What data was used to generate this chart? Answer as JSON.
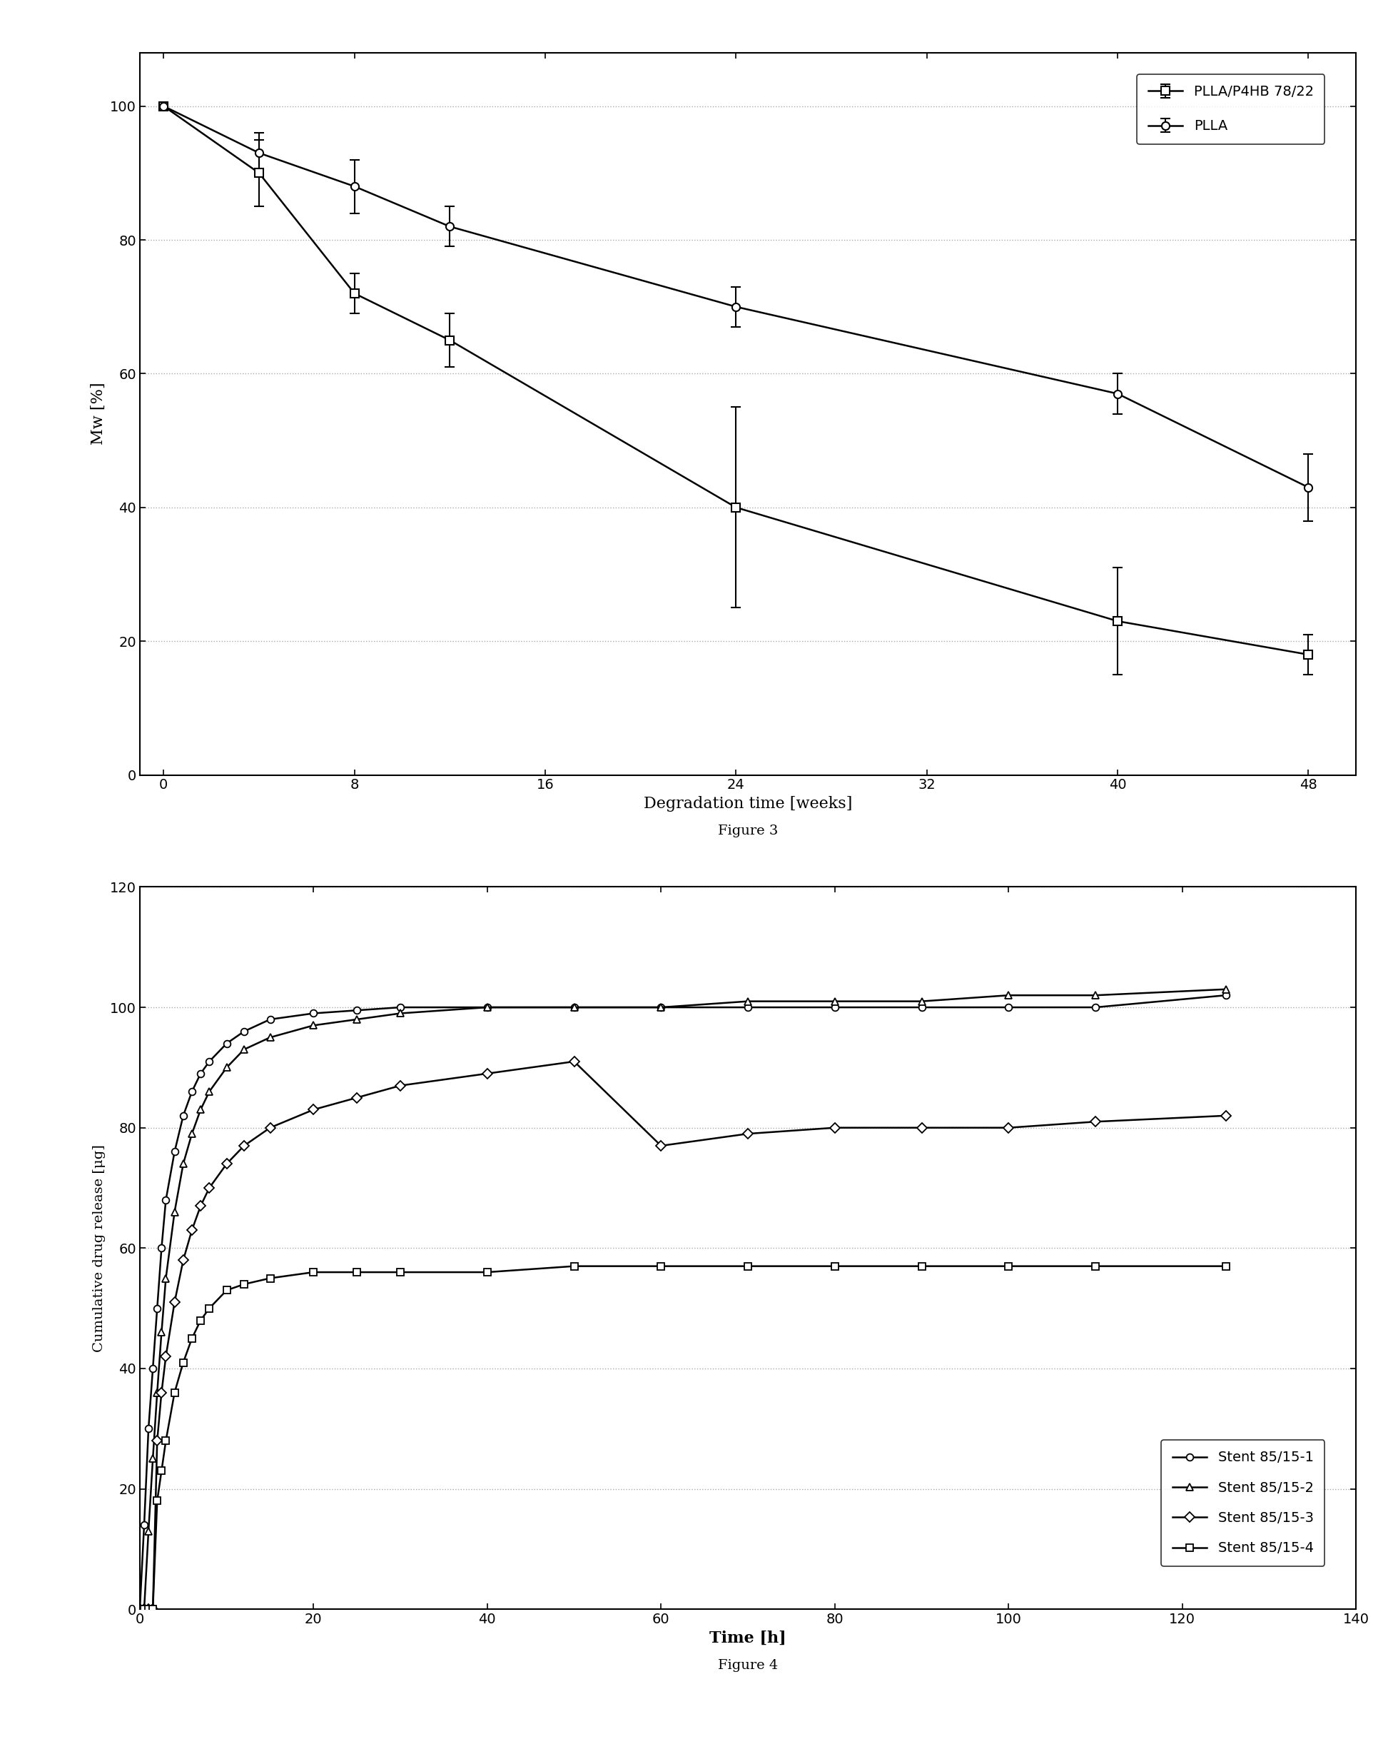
{
  "fig3": {
    "title": "Figure 3",
    "xlabel": "Degradation time [weeks]",
    "ylabel": "Mw [%]",
    "xlim": [
      -1,
      50
    ],
    "ylim": [
      0,
      108
    ],
    "xticks": [
      0,
      8,
      16,
      24,
      32,
      40,
      48
    ],
    "yticks": [
      0,
      20,
      40,
      60,
      80,
      100
    ],
    "grid_y": [
      20,
      40,
      60,
      80,
      100
    ],
    "series": [
      {
        "label": "PLLA/P4HB 78/22",
        "marker": "s",
        "x": [
          0,
          4,
          8,
          12,
          24,
          40,
          48
        ],
        "y": [
          100,
          90,
          72,
          65,
          40,
          23,
          18
        ],
        "yerr": [
          0,
          5,
          3,
          4,
          15,
          8,
          3
        ]
      },
      {
        "label": "PLLA",
        "marker": "o",
        "x": [
          0,
          4,
          8,
          12,
          24,
          40,
          48
        ],
        "y": [
          100,
          93,
          88,
          82,
          70,
          57,
          43
        ],
        "yerr": [
          0,
          3,
          4,
          3,
          3,
          3,
          5
        ]
      }
    ]
  },
  "fig4": {
    "title": "Figure 4",
    "xlabel": "Time [h]",
    "ylabel": "Cumulative drug release [μg]",
    "xlim": [
      0,
      140
    ],
    "ylim": [
      0,
      120
    ],
    "xticks": [
      0,
      20,
      40,
      60,
      80,
      100,
      120,
      140
    ],
    "yticks": [
      0,
      20,
      40,
      60,
      80,
      100,
      120
    ],
    "grid_y": [
      20,
      40,
      60,
      80,
      100,
      120
    ],
    "series": [
      {
        "label": "Stent 85/15-1",
        "marker": "o",
        "x": [
          0,
          0.5,
          1,
          1.5,
          2,
          2.5,
          3,
          4,
          5,
          6,
          7,
          8,
          10,
          12,
          15,
          20,
          25,
          30,
          40,
          50,
          60,
          70,
          80,
          90,
          100,
          110,
          125
        ],
        "y": [
          0,
          14,
          30,
          40,
          50,
          60,
          68,
          76,
          82,
          86,
          89,
          91,
          94,
          96,
          98,
          99,
          99.5,
          100,
          100,
          100,
          100,
          100,
          100,
          100,
          100,
          100,
          102
        ]
      },
      {
        "label": "Stent 85/15-2",
        "marker": "^",
        "x": [
          0,
          0.5,
          1,
          1.5,
          2,
          2.5,
          3,
          4,
          5,
          6,
          7,
          8,
          10,
          12,
          15,
          20,
          25,
          30,
          40,
          50,
          60,
          70,
          80,
          90,
          100,
          110,
          125
        ],
        "y": [
          0,
          0,
          13,
          25,
          36,
          46,
          55,
          66,
          74,
          79,
          83,
          86,
          90,
          93,
          95,
          97,
          98,
          99,
          100,
          100,
          100,
          101,
          101,
          101,
          102,
          102,
          103
        ]
      },
      {
        "label": "Stent 85/15-3",
        "marker": "D",
        "x": [
          0,
          0.5,
          1,
          1.5,
          2,
          2.5,
          3,
          4,
          5,
          6,
          7,
          8,
          10,
          12,
          15,
          20,
          25,
          30,
          40,
          50,
          60,
          70,
          80,
          90,
          100,
          110,
          125
        ],
        "y": [
          0,
          0,
          0,
          0,
          28,
          36,
          42,
          51,
          58,
          63,
          67,
          70,
          74,
          77,
          80,
          83,
          85,
          87,
          89,
          91,
          77,
          79,
          80,
          80,
          80,
          81,
          82
        ]
      },
      {
        "label": "Stent 85/15-4",
        "marker": "s",
        "x": [
          0,
          0.5,
          1,
          1.5,
          2,
          2.5,
          3,
          4,
          5,
          6,
          7,
          8,
          10,
          12,
          15,
          20,
          25,
          30,
          40,
          50,
          60,
          70,
          80,
          90,
          100,
          110,
          125
        ],
        "y": [
          0,
          0,
          0,
          0,
          18,
          23,
          28,
          36,
          41,
          45,
          48,
          50,
          53,
          54,
          55,
          56,
          56,
          56,
          56,
          57,
          57,
          57,
          57,
          57,
          57,
          57,
          57
        ]
      }
    ]
  },
  "background_color": "#ffffff",
  "line_color": "#000000",
  "grid_color": "#aaaaaa",
  "grid_style": ":"
}
